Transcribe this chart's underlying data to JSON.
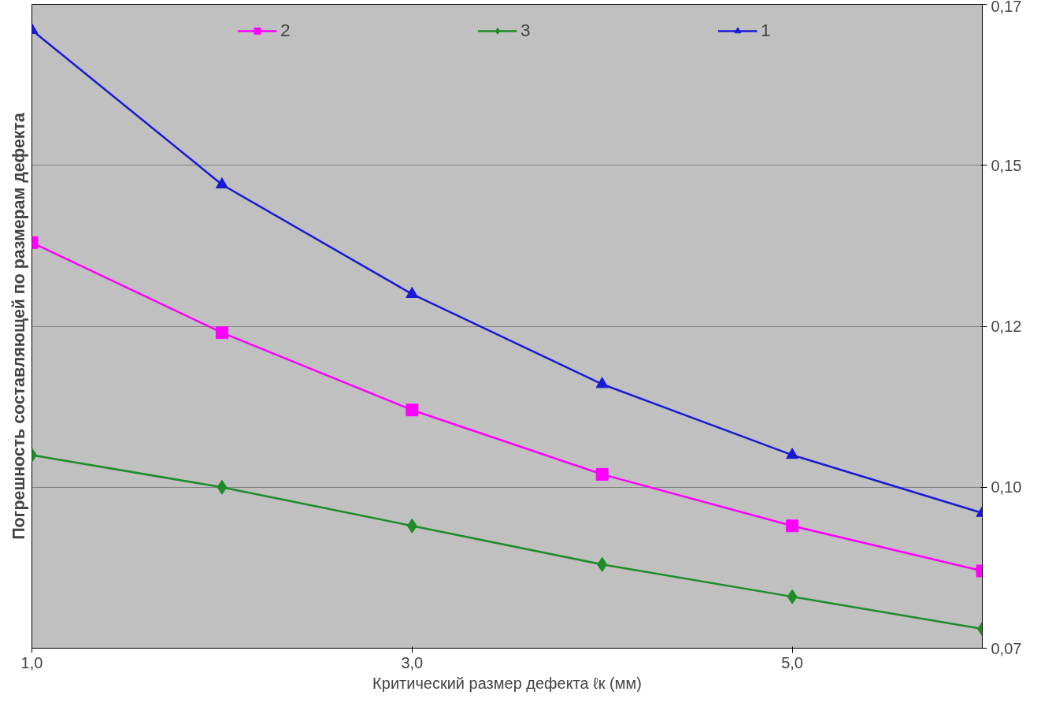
{
  "chart_data": {
    "type": "line",
    "xlabel": "Критический размер дефекта ℓк (мм)",
    "ylabel": "Погрешность составляющей по размерам дефекта",
    "x": [
      1,
      2,
      3,
      4,
      5,
      6
    ],
    "xlim": [
      1,
      6
    ],
    "xticks": [
      {
        "value": 1,
        "label": "1,0"
      },
      {
        "value": 3,
        "label": "3,0"
      },
      {
        "value": 5,
        "label": "5,0"
      }
    ],
    "ylim": [
      0.075,
      0.175
    ],
    "yticks": [
      {
        "value": 0.075,
        "label": "0,07"
      },
      {
        "value": 0.1,
        "label": "0,10"
      },
      {
        "value": 0.125,
        "label": "0,12"
      },
      {
        "value": 0.15,
        "label": "0,15"
      },
      {
        "value": 0.175,
        "label": "0,17"
      }
    ],
    "grid": "y",
    "legend": "top",
    "series": [
      {
        "name": "2",
        "color": "#ff00ff",
        "marker": "square",
        "values": [
          0.138,
          0.124,
          0.112,
          0.102,
          0.094,
          0.087
        ]
      },
      {
        "name": "3",
        "color": "#1e8c28",
        "marker": "diamond",
        "values": [
          0.105,
          0.1,
          0.094,
          0.088,
          0.083,
          0.078
        ]
      },
      {
        "name": "1",
        "color": "#1a1ad6",
        "marker": "triangle",
        "values": [
          0.171,
          0.147,
          0.13,
          0.116,
          0.105,
          0.096
        ]
      }
    ]
  }
}
